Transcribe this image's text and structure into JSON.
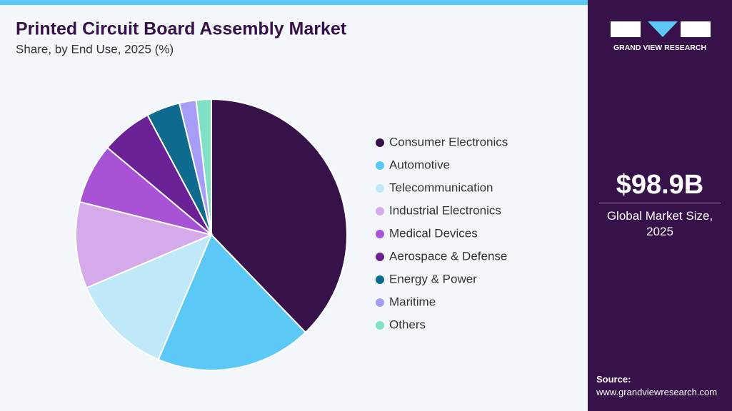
{
  "chart_data": {
    "type": "pie",
    "title": "Printed Circuit Board Assembly Market",
    "subtitle": "Share, by End Use, 2025 (%)",
    "categories": [
      "Consumer Electronics",
      "Automotive",
      "Telecommunication",
      "Industrial Electronics",
      "Medical Devices",
      "Aerospace & Defense",
      "Energy & Power",
      "Maritime",
      "Others"
    ],
    "values": [
      37.8,
      18.6,
      12.2,
      10.3,
      7.2,
      6.1,
      4.0,
      2.0,
      1.8
    ],
    "colors": [
      "#37114a",
      "#5bc8f5",
      "#bfe9f9",
      "#d4aaea",
      "#a852d6",
      "#6a2196",
      "#0f6b8d",
      "#a59df7",
      "#80e0c6"
    ]
  },
  "brand": "GRAND VIEW RESEARCH",
  "market_size": {
    "value": "$98.9B",
    "label": "Global Market Size, 2025"
  },
  "source": {
    "label": "Source:",
    "url": "www.grandviewresearch.com"
  }
}
